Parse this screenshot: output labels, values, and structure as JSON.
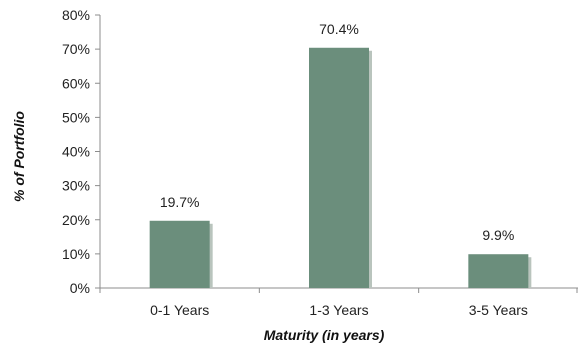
{
  "chart_data": {
    "type": "bar",
    "categories": [
      "0-1 Years",
      "1-3 Years",
      "3-5 Years"
    ],
    "values": [
      19.7,
      70.4,
      9.9
    ],
    "data_labels": [
      "19.7%",
      "70.4%",
      "9.9%"
    ],
    "title": "",
    "xlabel": "Maturity (in years)",
    "ylabel": "% of Portfolio",
    "ylim": [
      0,
      80
    ],
    "yticks": [
      0,
      10,
      20,
      30,
      40,
      50,
      60,
      70,
      80
    ],
    "ytick_labels": [
      "0%",
      "10%",
      "20%",
      "30%",
      "40%",
      "50%",
      "60%",
      "70%",
      "80%"
    ],
    "grid": false,
    "legend": "none",
    "bar_color": "#6b8e7c",
    "bar_shadow_color": "#b9c4bd"
  }
}
